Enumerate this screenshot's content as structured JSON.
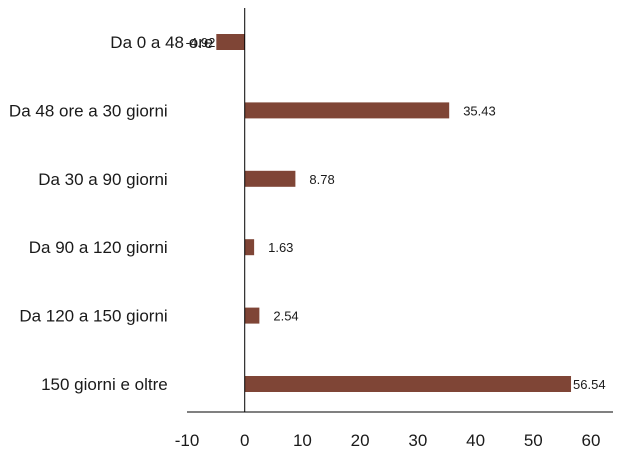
{
  "chart_data": {
    "type": "bar",
    "orientation": "horizontal",
    "categories": [
      "Da 0 a 48 ore",
      "Da 48 ore a 30 giorni",
      "Da 30 a 90 giorni",
      "Da 90 a 120 giorni",
      "Da 120 a 150 giorni",
      "150 giorni e oltre"
    ],
    "values": [
      -4.92,
      35.43,
      8.78,
      1.63,
      2.54,
      56.54
    ],
    "value_labels": [
      "-4.92",
      "35.43",
      "8.78",
      "1.63",
      "2.54",
      "56.54"
    ],
    "xlim": [
      -10,
      60
    ],
    "xticks": [
      -10,
      0,
      10,
      20,
      30,
      40,
      50,
      60
    ],
    "grid": false,
    "legend": "none",
    "bar_color": "#7f4536",
    "axis_color": "#000000"
  }
}
